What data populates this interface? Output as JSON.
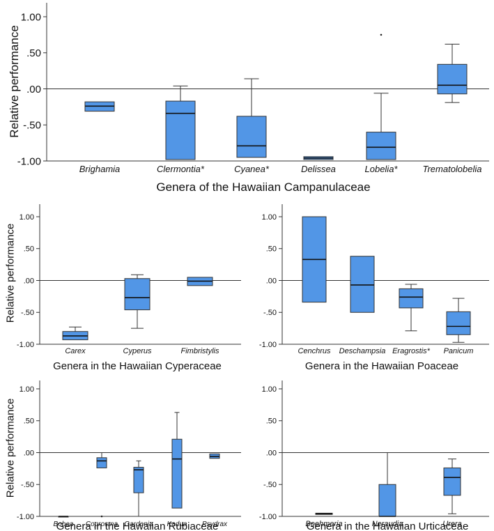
{
  "colors": {
    "box_fill": "#5296E6",
    "box_stroke": "#333333",
    "axis": "#333333"
  },
  "chart_data": [
    {
      "id": "campanulaceae",
      "type": "boxplot",
      "xlabel": "Genera of the Hawaiian Campanulaceae",
      "ylabel": "Relative performance",
      "ylim": [
        -1.0,
        1.2
      ],
      "ytick_values": [
        -1,
        -0.5,
        0,
        0.5,
        1
      ],
      "ytick_labels": [
        "-1.00",
        "-.50",
        ".00",
        ".50",
        "1.00"
      ],
      "reference_line": 0,
      "categories": [
        "Brighamia",
        "Clermontia*",
        "Cyanea*",
        "Delissea",
        "Lobelia*",
        "Trematolobelia"
      ],
      "boxes": [
        {
          "min": -0.31,
          "q1": -0.31,
          "median": -0.24,
          "q3": -0.18,
          "max": -0.18
        },
        {
          "min": -0.98,
          "q1": -0.98,
          "median": -0.34,
          "q3": -0.17,
          "max": 0.04
        },
        {
          "min": -0.95,
          "q1": -0.95,
          "median": -0.79,
          "q3": -0.38,
          "max": 0.14
        },
        {
          "min": -0.98,
          "q1": -0.98,
          "median": -0.96,
          "q3": -0.94,
          "max": -0.94
        },
        {
          "min": -0.98,
          "q1": -0.98,
          "median": -0.81,
          "q3": -0.6,
          "max": -0.06
        },
        {
          "min": -0.19,
          "q1": -0.07,
          "median": 0.05,
          "q3": 0.34,
          "max": 0.62
        }
      ],
      "outliers": [
        {
          "category": "Lobelia*",
          "value": 0.75
        }
      ]
    },
    {
      "id": "cyperaceae",
      "type": "boxplot",
      "xlabel": "Genera in the Hawaiian Cyperaceae",
      "ylabel": "Relative performance",
      "ylim": [
        -1.0,
        1.2
      ],
      "ytick_values": [
        -1,
        -0.5,
        0,
        0.5,
        1
      ],
      "ytick_labels": [
        "-1.00",
        "-.50",
        ".00",
        ".50",
        "1.00"
      ],
      "reference_line": 0,
      "categories": [
        "Carex",
        "Cyperus",
        "Fimbristylis"
      ],
      "boxes": [
        {
          "min": -0.93,
          "q1": -0.93,
          "median": -0.87,
          "q3": -0.8,
          "max": -0.73
        },
        {
          "min": -0.75,
          "q1": -0.46,
          "median": -0.27,
          "q3": 0.03,
          "max": 0.09
        },
        {
          "min": -0.08,
          "q1": -0.08,
          "median": -0.01,
          "q3": 0.05,
          "max": 0.05
        }
      ],
      "outliers": []
    },
    {
      "id": "poaceae",
      "type": "boxplot",
      "xlabel": "Genera in the Hawaiian Poaceae",
      "ylabel": "",
      "ylim": [
        -1.0,
        1.2
      ],
      "ytick_values": [
        -1,
        -0.5,
        0,
        0.5,
        1
      ],
      "ytick_labels": [
        "-1.00",
        "-.50",
        ".00",
        ".50",
        "1.00"
      ],
      "reference_line": 0,
      "categories": [
        "Cenchrus",
        "Deschampsia",
        "Eragrostis*",
        "Panicum"
      ],
      "boxes": [
        {
          "min": -0.34,
          "q1": -0.34,
          "median": 0.33,
          "q3": 1.0,
          "max": 1.0
        },
        {
          "min": -0.5,
          "q1": -0.5,
          "median": -0.07,
          "q3": 0.38,
          "max": 0.38
        },
        {
          "min": -0.79,
          "q1": -0.43,
          "median": -0.26,
          "q3": -0.13,
          "max": -0.06
        },
        {
          "min": -0.97,
          "q1": -0.85,
          "median": -0.72,
          "q3": -0.49,
          "max": -0.28
        }
      ],
      "outliers": []
    },
    {
      "id": "rubiaceae",
      "type": "boxplot",
      "xlabel": "Genera in the Hawaiian Rubiaceae",
      "ylabel": "Relative performance",
      "ylim": [
        -1.0,
        1.2
      ],
      "ytick_values": [
        -1,
        -0.5,
        0,
        0.5,
        1
      ],
      "ytick_labels": [
        "-1.00",
        "-.50",
        ".00",
        ".50",
        "1.00"
      ],
      "reference_line": 0,
      "categories": [
        "Bobea",
        "Coprosma",
        "Gardenia",
        "Kadua",
        "Psydrax"
      ],
      "boxes": [
        {
          "min": -1.0,
          "q1": -1.0,
          "median": -1.0,
          "q3": -1.0,
          "max": -1.0
        },
        {
          "min": -0.24,
          "q1": -0.24,
          "median": -0.13,
          "q3": -0.08,
          "max": 0.0
        },
        {
          "min": -1.0,
          "q1": -0.63,
          "median": -0.27,
          "q3": -0.23,
          "max": -0.13
        },
        {
          "min": -0.87,
          "q1": -0.87,
          "median": -0.1,
          "q3": 0.21,
          "max": 0.63
        },
        {
          "min": -0.09,
          "q1": -0.09,
          "median": -0.06,
          "q3": -0.02,
          "max": -0.02
        }
      ],
      "outliers": [
        {
          "category": "Coprosma",
          "value": -1.0
        }
      ]
    },
    {
      "id": "urticaceae",
      "type": "boxplot",
      "xlabel": "Genera in the Hawaiian  Urticaceae",
      "ylabel": "",
      "ylim": [
        -1.0,
        1.2
      ],
      "ytick_values": [
        -1,
        -0.5,
        0,
        0.5,
        1
      ],
      "ytick_labels": [
        "-1.00",
        "-.50",
        ".00",
        ".50",
        "1.00"
      ],
      "reference_line": 0,
      "categories": [
        "Boehmeria",
        "Neraudia",
        "Urera"
      ],
      "boxes": [
        {
          "min": -0.97,
          "q1": -0.97,
          "median": -0.96,
          "q3": -0.95,
          "max": -0.95
        },
        {
          "min": -1.0,
          "q1": -1.0,
          "median": -1.0,
          "q3": -0.5,
          "max": 0.0
        },
        {
          "min": -0.96,
          "q1": -0.67,
          "median": -0.39,
          "q3": -0.24,
          "max": -0.1
        }
      ],
      "outliers": []
    }
  ]
}
